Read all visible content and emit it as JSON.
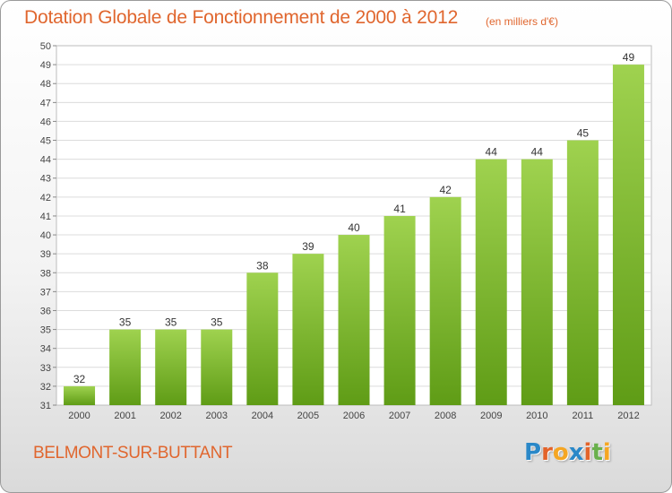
{
  "header": {
    "title": "Dotation Globale de Fonctionnement de 2000 à 2012",
    "subtitle": "(en milliers d'€)"
  },
  "footer": {
    "commune": "BELMONT-SUR-BUTTANT",
    "logo_letters": [
      "P",
      "r",
      "o",
      "x",
      "i",
      "t",
      "i"
    ]
  },
  "colors": {
    "title": "#e0662e",
    "bar_light": "#9fd24f",
    "bar_dark": "#5f9c16",
    "logo": [
      "#2a88c8",
      "#e3632a",
      "#f5a623",
      "#2a88c8",
      "#e3632a",
      "#6ab04c",
      "#f5a623"
    ]
  },
  "chart_data": {
    "type": "bar",
    "title": "Dotation Globale de Fonctionnement de 2000 à 2012",
    "subtitle": "(en milliers d'€)",
    "categories": [
      "2000",
      "2001",
      "2002",
      "2003",
      "2004",
      "2005",
      "2006",
      "2007",
      "2008",
      "2009",
      "2010",
      "2011",
      "2012"
    ],
    "values": [
      32,
      35,
      35,
      35,
      38,
      39,
      40,
      41,
      42,
      44,
      44,
      45,
      49
    ],
    "ylim": [
      31,
      50
    ],
    "ytick_step": 1,
    "grid": true,
    "data_labels": true
  }
}
